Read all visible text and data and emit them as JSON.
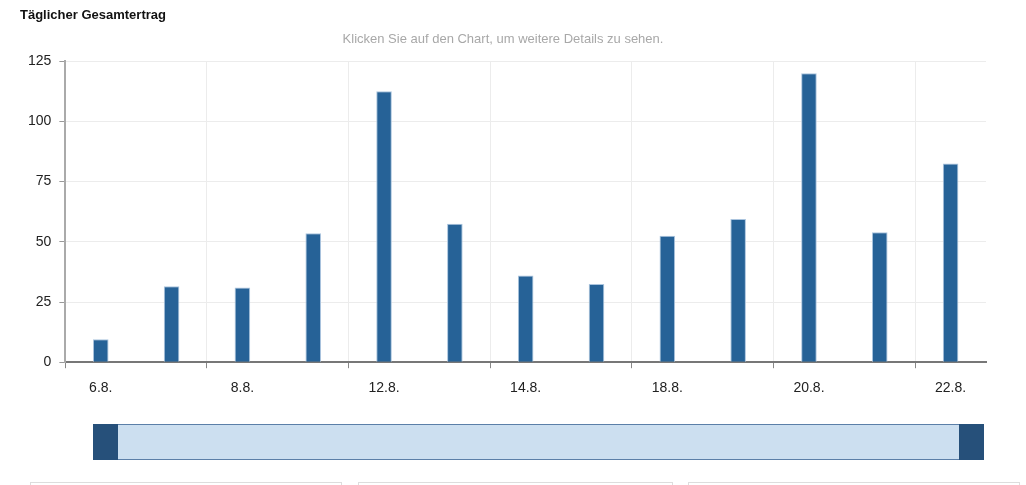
{
  "chart_data": {
    "type": "bar",
    "title": "Täglicher Gesamtertrag",
    "subtitle": "Klicken Sie auf den Chart, um weitere Details zu sehen.",
    "categories": [
      "6.8.",
      null,
      "8.8.",
      null,
      "12.8.",
      null,
      "14.8.",
      null,
      "18.8.",
      null,
      "20.8.",
      null,
      "22.8."
    ],
    "values": [
      9.5,
      31.5,
      31,
      53.5,
      112.5,
      57.5,
      36,
      32.5,
      52.5,
      59.5,
      120,
      54,
      82.5
    ],
    "color": "#266297",
    "ylim": [
      0,
      125
    ],
    "yticks": [
      0,
      25,
      50,
      75,
      100,
      125
    ],
    "grid": true,
    "legend": false
  }
}
